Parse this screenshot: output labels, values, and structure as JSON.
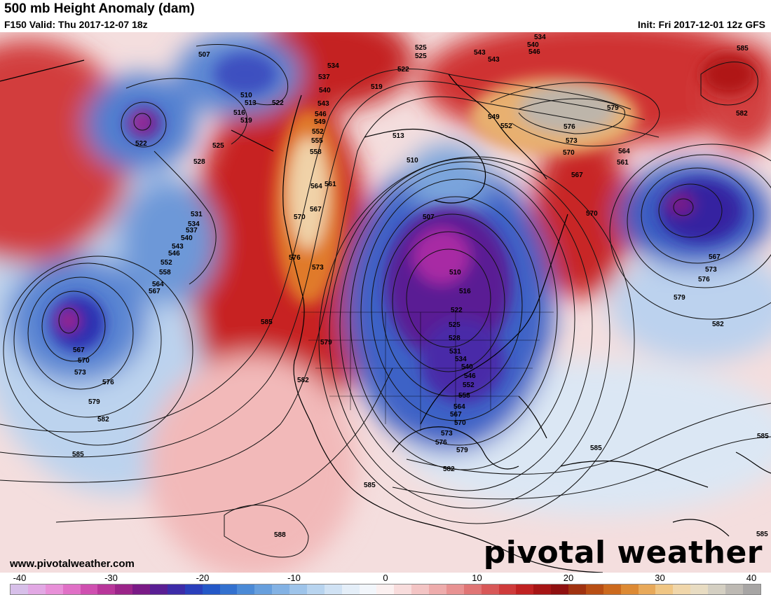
{
  "header": {
    "title": "500 mb Height Anomaly (dam)",
    "valid": "F150 Valid: Thu 2017-12-07 18z",
    "init": "Init: Fri 2017-12-01 12z GFS"
  },
  "footer": {
    "website": "www.pivotalweather.com",
    "brand": "pivotal weather"
  },
  "colorbar": {
    "labels": [
      "-40",
      "-30",
      "-20",
      "-10",
      "0",
      "10",
      "20",
      "30",
      "40"
    ],
    "colors": [
      "#d7bfe9",
      "#e2a8e4",
      "#e890d8",
      "#e070c6",
      "#cf4fb0",
      "#b8369a",
      "#9b2489",
      "#7a1a86",
      "#5a1f94",
      "#3d2ca8",
      "#2a3fbb",
      "#2458c7",
      "#3371cf",
      "#4b8ad6",
      "#679fdd",
      "#83b2e4",
      "#9ec4ea",
      "#b8d4ef",
      "#d0e2f4",
      "#e4eef8",
      "#f2f6fb",
      "#fbf0f0",
      "#f8dcdc",
      "#f3c4c4",
      "#eeacac",
      "#e89292",
      "#e07575",
      "#d85858",
      "#cf3b3b",
      "#c02222",
      "#a61515",
      "#8f1010",
      "#a03210",
      "#b84e14",
      "#cc6a1e",
      "#dd8a34",
      "#e8a95a",
      "#f0c684",
      "#f0d6aa",
      "#e8dcc2",
      "#d4cfc2",
      "#bdb9b3",
      "#a7a5a4"
    ]
  },
  "map": {
    "contour_labels": [
      "507",
      "510",
      "513",
      "516",
      "519",
      "522",
      "525",
      "528",
      "531",
      "534",
      "537",
      "540",
      "543",
      "546",
      "549",
      "552",
      "555",
      "558",
      "561",
      "564",
      "567",
      "570",
      "573",
      "576",
      "579",
      "582",
      "585",
      "588"
    ]
  }
}
